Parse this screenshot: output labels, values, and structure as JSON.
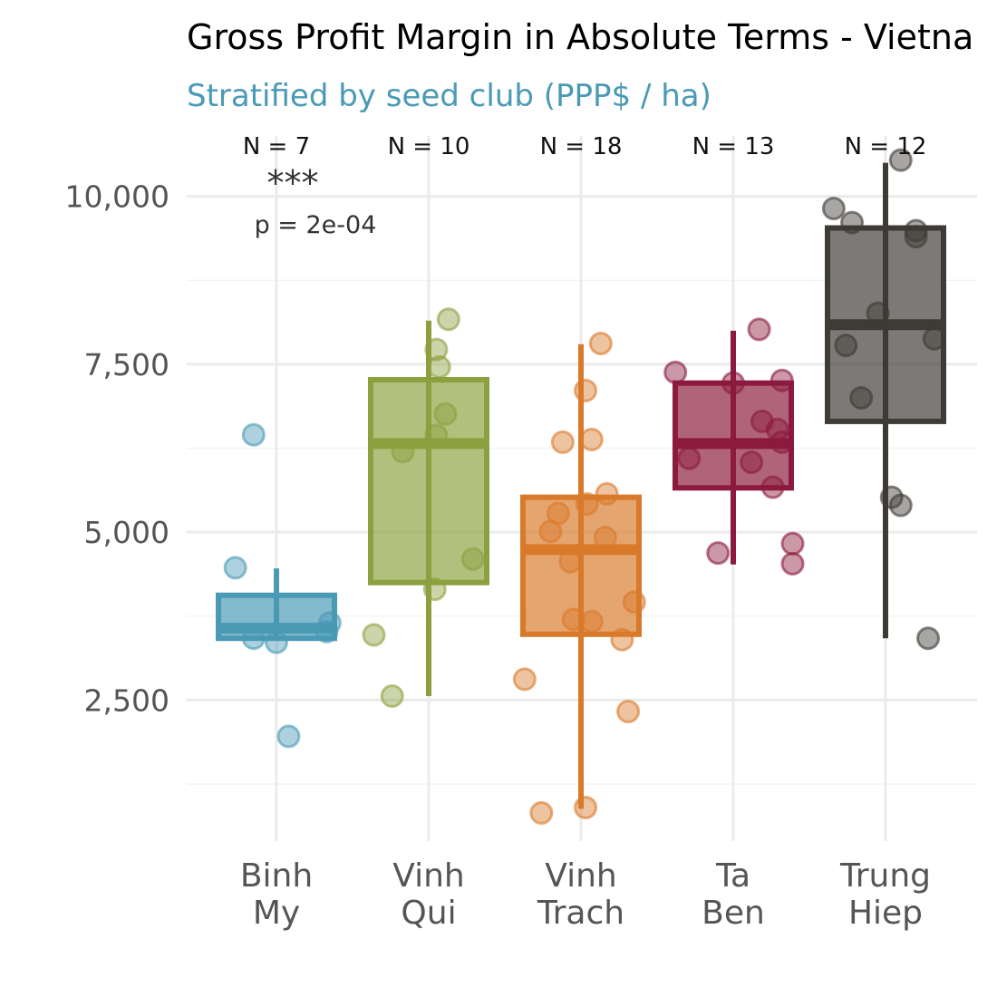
{
  "chart_data": {
    "type": "boxplot",
    "title": "Gross Profit Margin in Absolute Terms - Vietna",
    "subtitle": "Stratified by seed club (PPP$ / ha)",
    "xlabel": "",
    "ylabel": "",
    "ylim": [
      400,
      10900
    ],
    "y_ticks": [
      2500,
      5000,
      7500,
      10000
    ],
    "y_tick_labels": [
      "2,500",
      "5,000",
      "7,500",
      "10,000"
    ],
    "grid": true,
    "legend": "none",
    "annotation": {
      "stars": "***",
      "p_text": "p = 2e-04",
      "group": 0
    },
    "groups": [
      {
        "label_lines": [
          "Binh",
          "My"
        ],
        "n_label": "N = 7",
        "color": "#4a9ab5",
        "stats": {
          "whisker_low": 3400,
          "q1": 3420,
          "median": 3570,
          "q3": 4060,
          "whisker_high": 4460
        },
        "points": [
          {
            "x": -0.15,
            "y": 6450
          },
          {
            "x": -0.27,
            "y": 4470
          },
          {
            "x": -0.15,
            "y": 3420
          },
          {
            "x": 0.0,
            "y": 3360
          },
          {
            "x": 0.33,
            "y": 3520
          },
          {
            "x": 0.35,
            "y": 3650
          },
          {
            "x": 0.08,
            "y": 1960
          }
        ]
      },
      {
        "label_lines": [
          "Vinh",
          "Qui"
        ],
        "n_label": "N = 10",
        "color": "#8da040",
        "stats": {
          "whisker_low": 2560,
          "q1": 4250,
          "median": 6320,
          "q3": 7270,
          "whisker_high": 8150
        },
        "points": [
          {
            "x": 0.13,
            "y": 8170
          },
          {
            "x": 0.05,
            "y": 7720
          },
          {
            "x": 0.07,
            "y": 7460
          },
          {
            "x": 0.11,
            "y": 6760
          },
          {
            "x": 0.05,
            "y": 6440
          },
          {
            "x": -0.17,
            "y": 6200
          },
          {
            "x": 0.29,
            "y": 4600
          },
          {
            "x": 0.04,
            "y": 4150
          },
          {
            "x": -0.36,
            "y": 3470
          },
          {
            "x": -0.24,
            "y": 2560
          }
        ]
      },
      {
        "label_lines": [
          "Vinh",
          "Trach"
        ],
        "n_label": "N = 18",
        "color": "#d97a2b",
        "stats": {
          "whisker_low": 880,
          "q1": 3480,
          "median": 4740,
          "q3": 5520,
          "whisker_high": 7800
        },
        "points": [
          {
            "x": 0.13,
            "y": 7810
          },
          {
            "x": 0.03,
            "y": 7110
          },
          {
            "x": -0.12,
            "y": 6340
          },
          {
            "x": 0.07,
            "y": 6380
          },
          {
            "x": 0.17,
            "y": 5570
          },
          {
            "x": 0.04,
            "y": 5420
          },
          {
            "x": -0.15,
            "y": 5280
          },
          {
            "x": -0.2,
            "y": 5010
          },
          {
            "x": 0.16,
            "y": 4920
          },
          {
            "x": -0.07,
            "y": 4560
          },
          {
            "x": 0.35,
            "y": 3960
          },
          {
            "x": -0.05,
            "y": 3700
          },
          {
            "x": 0.07,
            "y": 3670
          },
          {
            "x": 0.27,
            "y": 3400
          },
          {
            "x": -0.37,
            "y": 2810
          },
          {
            "x": 0.31,
            "y": 2330
          },
          {
            "x": 0.03,
            "y": 900
          },
          {
            "x": -0.26,
            "y": 820
          }
        ]
      },
      {
        "label_lines": [
          "Ta",
          "Ben"
        ],
        "n_label": "N = 13",
        "color": "#8b1a3e",
        "stats": {
          "whisker_low": 4520,
          "q1": 5660,
          "median": 6320,
          "q3": 7220,
          "whisker_high": 8000
        },
        "points": [
          {
            "x": 0.17,
            "y": 8020
          },
          {
            "x": -0.38,
            "y": 7380
          },
          {
            "x": 0.0,
            "y": 7220
          },
          {
            "x": 0.32,
            "y": 7260
          },
          {
            "x": 0.19,
            "y": 6650
          },
          {
            "x": 0.29,
            "y": 6530
          },
          {
            "x": 0.32,
            "y": 6340
          },
          {
            "x": -0.29,
            "y": 6100
          },
          {
            "x": 0.12,
            "y": 6040
          },
          {
            "x": 0.26,
            "y": 5670
          },
          {
            "x": -0.1,
            "y": 4690
          },
          {
            "x": 0.39,
            "y": 4830
          },
          {
            "x": 0.39,
            "y": 4530
          }
        ]
      },
      {
        "label_lines": [
          "Trung",
          "Hiep"
        ],
        "n_label": "N = 12",
        "color": "#3e3a35",
        "stats": {
          "whisker_low": 3420,
          "q1": 6650,
          "median": 8090,
          "q3": 9530,
          "whisker_high": 10500
        },
        "points": [
          {
            "x": 0.1,
            "y": 10540
          },
          {
            "x": -0.34,
            "y": 9820
          },
          {
            "x": -0.22,
            "y": 9610
          },
          {
            "x": 0.2,
            "y": 9490
          },
          {
            "x": 0.2,
            "y": 9400
          },
          {
            "x": -0.05,
            "y": 8260
          },
          {
            "x": 0.32,
            "y": 7880
          },
          {
            "x": -0.26,
            "y": 7780
          },
          {
            "x": -0.16,
            "y": 7000
          },
          {
            "x": 0.04,
            "y": 5520
          },
          {
            "x": 0.1,
            "y": 5400
          },
          {
            "x": 0.28,
            "y": 3420
          }
        ]
      }
    ]
  }
}
